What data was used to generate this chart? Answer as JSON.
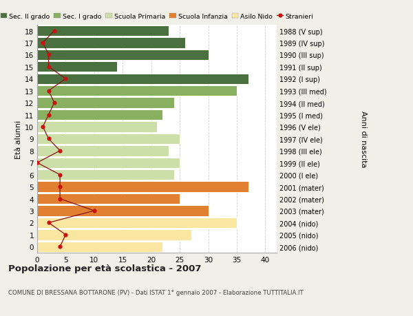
{
  "ages": [
    0,
    1,
    2,
    3,
    4,
    5,
    6,
    7,
    8,
    9,
    10,
    11,
    12,
    13,
    14,
    15,
    16,
    17,
    18
  ],
  "bar_values": [
    22,
    27,
    35,
    30,
    25,
    37,
    24,
    25,
    23,
    25,
    21,
    22,
    24,
    35,
    37,
    14,
    30,
    26,
    23
  ],
  "bar_colors": [
    "#f9e6a0",
    "#f9e6a0",
    "#f9e6a0",
    "#e08030",
    "#e08030",
    "#e08030",
    "#cddfa8",
    "#cddfa8",
    "#cddfa8",
    "#cddfa8",
    "#cddfa8",
    "#88b060",
    "#88b060",
    "#88b060",
    "#4a7040",
    "#4a7040",
    "#4a7040",
    "#4a7040",
    "#4a7040"
  ],
  "right_labels": [
    "2006 (nido)",
    "2005 (nido)",
    "2004 (nido)",
    "2003 (mater)",
    "2002 (mater)",
    "2001 (mater)",
    "2000 (I ele)",
    "1999 (II ele)",
    "1998 (III ele)",
    "1997 (IV ele)",
    "1996 (V ele)",
    "1995 (I med)",
    "1994 (II med)",
    "1993 (III med)",
    "1992 (I sup)",
    "1991 (II sup)",
    "1990 (III sup)",
    "1989 (IV sup)",
    "1988 (V sup)"
  ],
  "stranieri_values": [
    4,
    5,
    2,
    10,
    4,
    4,
    4,
    0,
    4,
    2,
    1,
    2,
    3,
    2,
    5,
    2,
    2,
    1,
    3
  ],
  "legend_labels": [
    "Sec. II grado",
    "Sec. I grado",
    "Scuola Primaria",
    "Scuola Infanzia",
    "Asilo Nido",
    "Stranieri"
  ],
  "legend_colors": [
    "#4a7040",
    "#88b060",
    "#cddfa8",
    "#e08030",
    "#f9e6a0",
    "#cc2222"
  ],
  "ylabel_left": "Età alunni",
  "ylabel_right": "Anni di nascita",
  "title": "Popolazione per età scolastica - 2007",
  "subtitle": "COMUNE DI BRESSANA BOTTARONE (PV) - Dati ISTAT 1° gennaio 2007 - Elaborazione TUTTITALIA.IT",
  "xlim": [
    0,
    42
  ],
  "bg_color": "#f0f0e8",
  "plot_bg": "#ffffff",
  "grid_color": "#cccccc"
}
